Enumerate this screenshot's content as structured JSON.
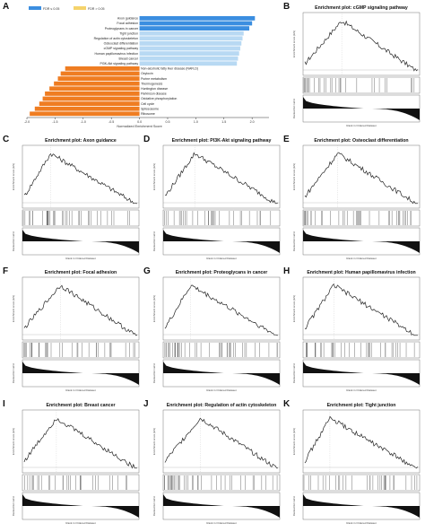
{
  "panelA": {
    "letter": "A",
    "legend": [
      {
        "label": "FDR ≤ 0.05",
        "color": "#3b8ee0"
      },
      {
        "label": "FDR > 0.05",
        "color": "#f5d36b"
      }
    ],
    "xlabel": "Normalized Enrichment Score",
    "ticks": [
      "-2.0",
      "-1.5",
      "-1.0",
      "-0.5",
      "0.0",
      "0.5",
      "1.0",
      "1.5",
      "2.0"
    ]
  },
  "chart_data": {
    "type": "bar",
    "xlabel": "Normalized Enrichment Score",
    "xlim": [
      -2.0,
      2.3
    ],
    "categories": [
      "Axon guidance",
      "Focal adhesion",
      "Proteoglycans in cancer",
      "Tight junction",
      "Regulation of actin cytoskeleton",
      "Osteoclast differentiation",
      "cGMP signaling pathway",
      "Human papillomavirus infection",
      "Breast cancer",
      "PI3K-Akt signaling pathway",
      "Non-alcoholic fatty liver disease (NAFLD)",
      "Oxytocin",
      "Purine metabolism",
      "Thermogenesis",
      "Huntington disease",
      "Parkinson disease",
      "Oxidative phosphorylation",
      "Cell cycle",
      "Spliceosome",
      "Ribosome"
    ],
    "values": [
      2.05,
      2.0,
      1.95,
      1.85,
      1.83,
      1.81,
      1.79,
      1.77,
      1.75,
      1.73,
      -1.32,
      -1.4,
      -1.45,
      -1.52,
      -1.6,
      -1.68,
      -1.72,
      -1.78,
      -1.86,
      -1.95
    ],
    "colors": [
      "#3b8ee0",
      "#3b8ee0",
      "#3b8ee0",
      "#b8d9f3",
      "#b8d9f3",
      "#b8d9f3",
      "#b8d9f3",
      "#b8d9f3",
      "#b8d9f3",
      "#b8d9f3",
      "#ef7d22",
      "#ef7d22",
      "#ef7d22",
      "#ef7d22",
      "#ef7d22",
      "#ef7d22",
      "#ef7d22",
      "#ef7d22",
      "#ef7d22",
      "#ef7d22"
    ]
  },
  "gsea_panels": [
    {
      "letter": "B",
      "title": "Enrichment plot: cGMP signaling pathway"
    },
    {
      "letter": "C",
      "title": "Enrichment plot: Axon guidance"
    },
    {
      "letter": "D",
      "title": "Enrichment plot: PI3K-Akt signaling pathway"
    },
    {
      "letter": "E",
      "title": "Enrichment plot: Osteoclast differentiation"
    },
    {
      "letter": "F",
      "title": "Enrichment plot: Focal adhesion"
    },
    {
      "letter": "G",
      "title": "Enrichment plot: Proteoglycans in cancer"
    },
    {
      "letter": "H",
      "title": "Enrichment plot: Human papillomavirus infection"
    },
    {
      "letter": "I",
      "title": "Enrichment plot: Breast cancer"
    },
    {
      "letter": "J",
      "title": "Enrichment plot: Regulation of actin cytoskeleton"
    },
    {
      "letter": "K",
      "title": "Enrichment plot: Tight junction"
    }
  ],
  "gsea_axes": {
    "es_label": "Enrichment score (ES)",
    "metric_label": "Ranked list metric",
    "rank_label": "Rank in Ordered Dataset"
  }
}
